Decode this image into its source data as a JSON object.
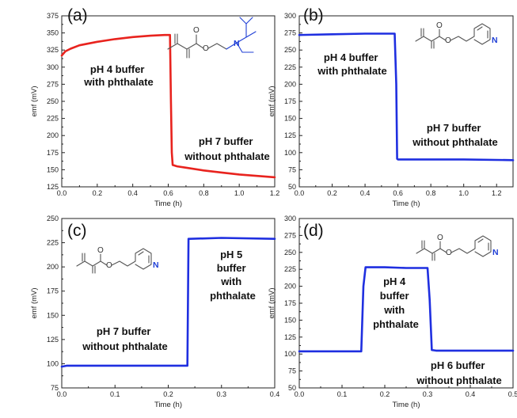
{
  "chart_data": [
    {
      "panel": "(a)",
      "type": "line",
      "color": "#e8231e",
      "xlabel": "Time (h)",
      "ylabel": "emf (mV)",
      "xlim": [
        0,
        1.2
      ],
      "ylim": [
        125,
        375
      ],
      "xticks": [
        0.0,
        0.2,
        0.4,
        0.6,
        0.8,
        1.0,
        1.2
      ],
      "yticks": [
        125,
        150,
        175,
        200,
        225,
        250,
        275,
        300,
        325,
        350,
        375
      ],
      "xtick_labels": [
        "0.0",
        "0.2",
        "0.4",
        "0.6",
        "0.8",
        "1.0",
        "1.2"
      ],
      "ytick_labels": [
        "125",
        "150",
        "175",
        "200",
        "225",
        "250",
        "275",
        "300",
        "325",
        "350",
        "375"
      ],
      "x": [
        0,
        0.02,
        0.05,
        0.1,
        0.2,
        0.3,
        0.4,
        0.5,
        0.58,
        0.61,
        0.615,
        0.62,
        0.625,
        0.65,
        0.7,
        0.8,
        0.9,
        1.0,
        1.1,
        1.2
      ],
      "y": [
        317,
        323,
        327,
        332,
        337,
        341,
        344,
        346,
        347,
        347,
        250,
        175,
        157,
        155,
        153,
        149,
        146,
        143,
        141,
        139
      ],
      "annotations": [
        {
          "text": [
            "pH 4 buffer",
            "with phthalate"
          ]
        },
        {
          "text": [
            "pH 7 buffer",
            "without phthalate"
          ]
        }
      ],
      "molecule": "amine"
    },
    {
      "panel": "(b)",
      "type": "line",
      "color": "#1f2fe0",
      "xlabel": "Time (h)",
      "ylabel": "emf (mV)",
      "xlim": [
        0,
        1.3
      ],
      "ylim": [
        50,
        300
      ],
      "xticks": [
        0.0,
        0.2,
        0.4,
        0.6,
        0.8,
        1.0,
        1.2
      ],
      "yticks": [
        50,
        75,
        100,
        125,
        150,
        175,
        200,
        225,
        250,
        275,
        300
      ],
      "xtick_labels": [
        "0.0",
        "0.2",
        "0.4",
        "0.6",
        "0.8",
        "1.0",
        "1.2"
      ],
      "ytick_labels": [
        "50",
        "75",
        "100",
        "125",
        "150",
        "175",
        "200",
        "225",
        "250",
        "275",
        "300"
      ],
      "x": [
        0,
        0.2,
        0.4,
        0.58,
        0.59,
        0.595,
        0.6,
        0.8,
        1.0,
        1.3
      ],
      "y": [
        272,
        273,
        274,
        274,
        200,
        91,
        90,
        90,
        90,
        89
      ],
      "annotations": [
        {
          "text": [
            "pH 4 buffer",
            "with phthalate"
          ]
        },
        {
          "text": [
            "pH 7 buffer",
            "without phthalate"
          ]
        }
      ],
      "molecule": "pyridine"
    },
    {
      "panel": "(c)",
      "type": "line",
      "color": "#1f2fe0",
      "xlabel": "Time (h)",
      "ylabel": "emf (mV)",
      "xlim": [
        0,
        0.4
      ],
      "ylim": [
        75,
        250
      ],
      "xticks": [
        0.0,
        0.1,
        0.2,
        0.3,
        0.4
      ],
      "yticks": [
        75,
        100,
        125,
        150,
        175,
        200,
        225,
        250
      ],
      "xtick_labels": [
        "0.0",
        "0.1",
        "0.2",
        "0.3",
        "0.4"
      ],
      "ytick_labels": [
        "75",
        "100",
        "125",
        "150",
        "175",
        "200",
        "225",
        "250"
      ],
      "x": [
        0,
        0.01,
        0.05,
        0.1,
        0.2,
        0.236,
        0.238,
        0.24,
        0.3,
        0.4
      ],
      "y": [
        97,
        98,
        98,
        98,
        98,
        98,
        229,
        229,
        230,
        229
      ],
      "annotations": [
        {
          "text": [
            "pH 7 buffer",
            "without phthalate"
          ]
        },
        {
          "text": [
            "pH 5",
            "buffer",
            "with",
            "phthalate"
          ]
        }
      ],
      "molecule": "pyridine"
    },
    {
      "panel": "(d)",
      "type": "line",
      "color": "#1f2fe0",
      "xlabel": "Time (h)",
      "ylabel": "emf (mV)",
      "xlim": [
        0,
        0.5
      ],
      "ylim": [
        50,
        300
      ],
      "xticks": [
        0.0,
        0.1,
        0.2,
        0.3,
        0.4,
        0.5
      ],
      "yticks": [
        50,
        75,
        100,
        125,
        150,
        175,
        200,
        225,
        250,
        275,
        300
      ],
      "xtick_labels": [
        "0.0",
        "0.1",
        "0.2",
        "0.3",
        "0.4",
        "0.5"
      ],
      "ytick_labels": [
        "50",
        "75",
        "100",
        "125",
        "150",
        "175",
        "200",
        "225",
        "250",
        "275",
        "300"
      ],
      "x": [
        0,
        0.05,
        0.1,
        0.145,
        0.15,
        0.155,
        0.2,
        0.25,
        0.3,
        0.305,
        0.31,
        0.32,
        0.4,
        0.5
      ],
      "y": [
        104,
        104,
        104,
        104,
        200,
        228,
        228,
        227,
        227,
        180,
        106,
        105,
        105,
        105
      ],
      "annotations": [
        {
          "text": [
            "pH 4",
            "buffer",
            "with",
            "phthalate"
          ]
        },
        {
          "text": [
            "pH 6 buffer",
            "without phthalate"
          ]
        }
      ],
      "molecule": "pyridine"
    }
  ],
  "atoms": {
    "oxygen": "O",
    "nitrogen": "N"
  }
}
